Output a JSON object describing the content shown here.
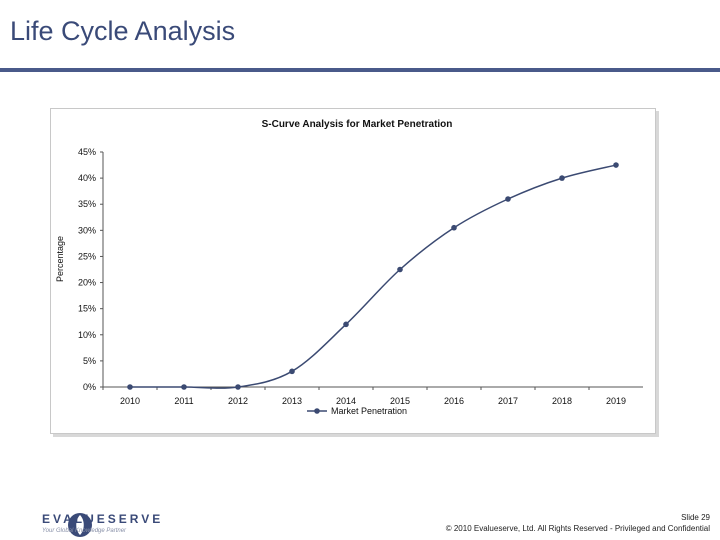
{
  "slide": {
    "title": "Life Cycle Analysis",
    "footer_slide": "Slide 29",
    "footer_copyright": "© 2010 Evalueserve, Ltd. All Rights Reserved - Privileged and Confidential",
    "logo_name": "EVALUESERVE",
    "logo_tagline": "Your Global Knowledge Partner"
  },
  "colors": {
    "title": "#3a4a78",
    "rule": "#4a5a8a",
    "series": "#3b4a72"
  },
  "chart_data": {
    "type": "line",
    "title": "S-Curve Analysis for Market Penetration",
    "xlabel": "",
    "ylabel": "Percentage",
    "x": [
      "2010",
      "2011",
      "2012",
      "2013",
      "2014",
      "2015",
      "2016",
      "2017",
      "2018",
      "2019"
    ],
    "series": [
      {
        "name": "Market Penetration",
        "values": [
          0,
          0,
          0,
          3,
          12,
          22.5,
          30.5,
          36,
          40,
          42.5
        ]
      }
    ],
    "ylim": [
      0,
      45
    ],
    "yticks": [
      "0%",
      "5%",
      "10%",
      "15%",
      "20%",
      "25%",
      "30%",
      "35%",
      "40%",
      "45%"
    ],
    "grid": false,
    "legend": "bottom"
  }
}
